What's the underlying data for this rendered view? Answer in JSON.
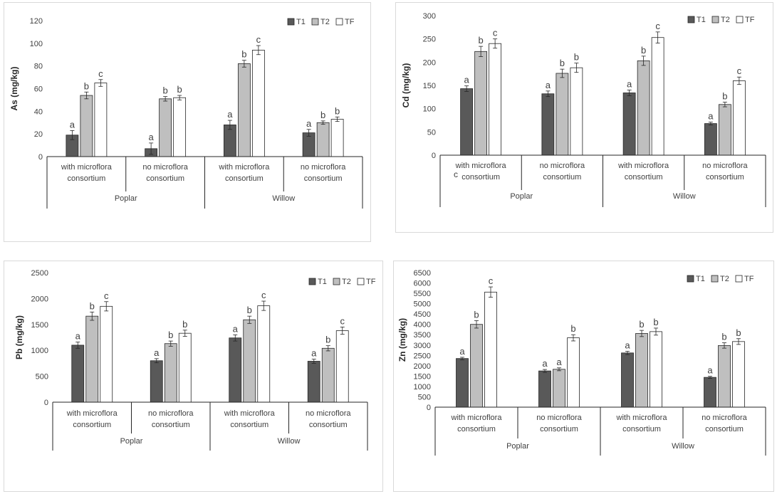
{
  "chart_data": [
    {
      "type": "bar",
      "ylabel": "As (mg/kg)",
      "ylim": [
        0,
        120
      ],
      "ytick_step": 20,
      "legend_position": "top-right",
      "groups": [
        {
          "label": [
            "with microflora",
            "consortium"
          ]
        },
        {
          "label": [
            "no microflora",
            "consortium"
          ]
        },
        {
          "label": [
            "with microflora",
            "consortium"
          ]
        },
        {
          "label": [
            "no microflora",
            "consortium"
          ]
        }
      ],
      "supergroups": [
        "Poplar",
        "Willow"
      ],
      "series": [
        {
          "name": "T1",
          "color": "#595959",
          "values": [
            19,
            7,
            28,
            21
          ],
          "errors": [
            4,
            5,
            4,
            3
          ],
          "letters": [
            "a",
            "a",
            "a",
            "a"
          ]
        },
        {
          "name": "T2",
          "color": "#bfbfbf",
          "values": [
            54,
            51,
            82,
            30
          ],
          "errors": [
            3,
            2,
            3,
            1.5
          ],
          "letters": [
            "b",
            "b",
            "b",
            "b"
          ]
        },
        {
          "name": "TF",
          "color": "#ffffff",
          "values": [
            65,
            52,
            94,
            33
          ],
          "errors": [
            3,
            2,
            4,
            2
          ],
          "letters": [
            "c",
            "b",
            "c",
            "b"
          ]
        }
      ]
    },
    {
      "type": "bar",
      "ylabel": "Cd (mg/kg)",
      "ylim": [
        0,
        300
      ],
      "ytick_step": 50,
      "legend_position": "top-right",
      "groups": [
        {
          "label": [
            "with microflora",
            "consortium"
          ]
        },
        {
          "label": [
            "no microflora",
            "consortium"
          ]
        },
        {
          "label": [
            "with microflora",
            "consortium"
          ]
        },
        {
          "label": [
            "no microflora",
            "consortium"
          ]
        }
      ],
      "supergroups": [
        "Poplar",
        "Willow"
      ],
      "stray_text": "c",
      "series": [
        {
          "name": "T1",
          "color": "#595959",
          "values": [
            143,
            132,
            134,
            68
          ],
          "errors": [
            6,
            6,
            6,
            3
          ],
          "letters": [
            "a",
            "a",
            "a",
            "a"
          ]
        },
        {
          "name": "T2",
          "color": "#bfbfbf",
          "values": [
            223,
            176,
            203,
            109
          ],
          "errors": [
            11,
            9,
            10,
            5
          ],
          "letters": [
            "b",
            "b",
            "b",
            "b"
          ]
        },
        {
          "name": "TF",
          "color": "#ffffff",
          "values": [
            240,
            188,
            253,
            160
          ],
          "errors": [
            10,
            10,
            12,
            8
          ],
          "letters": [
            "c",
            "b",
            "c",
            "c"
          ]
        }
      ]
    },
    {
      "type": "bar",
      "ylabel": "Pb (mg/kg)",
      "ylim": [
        0,
        2500
      ],
      "ytick_step": 500,
      "legend_position": "top-right",
      "groups": [
        {
          "label": [
            "with microflora",
            "consortium"
          ]
        },
        {
          "label": [
            "no microflora",
            "consortium"
          ]
        },
        {
          "label": [
            "with microflora",
            "consortium"
          ]
        },
        {
          "label": [
            "no microflora",
            "consortium"
          ]
        }
      ],
      "supergroups": [
        "Poplar",
        "Willow"
      ],
      "series": [
        {
          "name": "T1",
          "color": "#595959",
          "values": [
            1100,
            800,
            1240,
            790
          ],
          "errors": [
            60,
            40,
            60,
            40
          ],
          "letters": [
            "a",
            "a",
            "a",
            "a"
          ]
        },
        {
          "name": "T2",
          "color": "#bfbfbf",
          "values": [
            1660,
            1130,
            1590,
            1040
          ],
          "errors": [
            80,
            50,
            70,
            50
          ],
          "letters": [
            "b",
            "b",
            "b",
            "b"
          ]
        },
        {
          "name": "TF",
          "color": "#ffffff",
          "values": [
            1850,
            1330,
            1860,
            1380
          ],
          "errors": [
            90,
            60,
            90,
            70
          ],
          "letters": [
            "c",
            "b",
            "c",
            "c"
          ]
        }
      ]
    },
    {
      "type": "bar",
      "ylabel": "Zn (mg/kg)",
      "ylim": [
        0,
        6500
      ],
      "ytick_step": 500,
      "legend_position": "top-right",
      "groups": [
        {
          "label": [
            "with microflora",
            "consortium"
          ]
        },
        {
          "label": [
            "no microflora",
            "consortium"
          ]
        },
        {
          "label": [
            "with microflora",
            "consortium"
          ]
        },
        {
          "label": [
            "no microflora",
            "consortium"
          ]
        }
      ],
      "supergroups": [
        "Poplar",
        "Willow"
      ],
      "series": [
        {
          "name": "T1",
          "color": "#595959",
          "values": [
            2350,
            1750,
            2620,
            1440
          ],
          "errors": [
            60,
            70,
            80,
            50
          ],
          "letters": [
            "a",
            "a",
            "a",
            "a"
          ]
        },
        {
          "name": "T2",
          "color": "#bfbfbf",
          "values": [
            4000,
            1830,
            3560,
            2980
          ],
          "errors": [
            180,
            70,
            150,
            130
          ],
          "letters": [
            "b",
            "a",
            "b",
            "b"
          ]
        },
        {
          "name": "TF",
          "color": "#ffffff",
          "values": [
            5560,
            3350,
            3650,
            3170
          ],
          "errors": [
            250,
            150,
            170,
            140
          ],
          "letters": [
            "c",
            "b",
            "b",
            "b"
          ]
        }
      ]
    }
  ]
}
